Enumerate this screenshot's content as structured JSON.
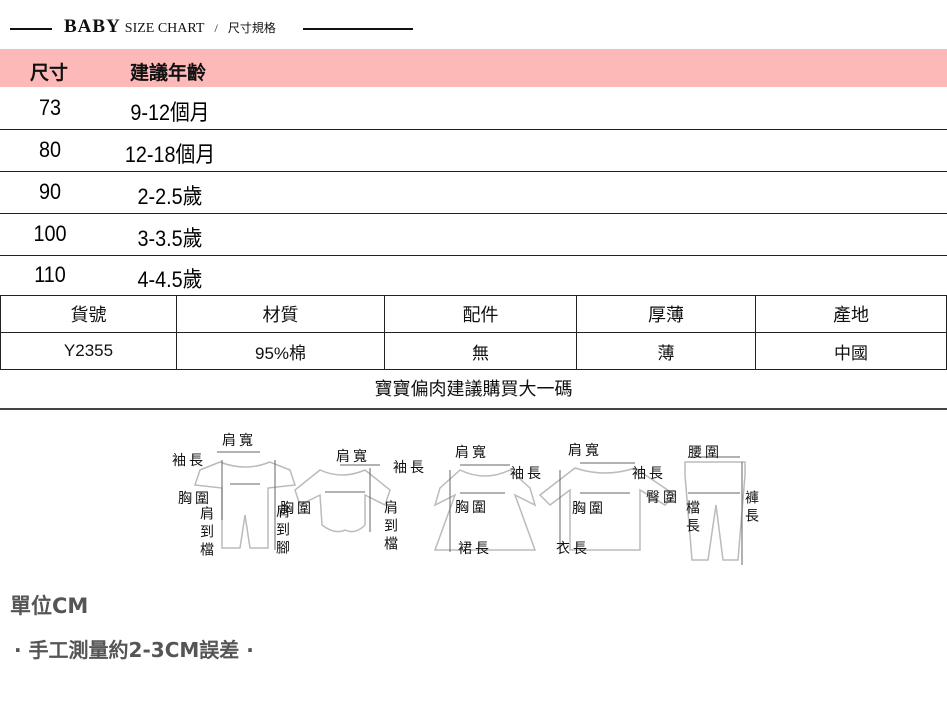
{
  "header": {
    "baby": "BABY",
    "size_chart": "SIZE CHART",
    "slash": "/",
    "zh_title": "尺寸規格"
  },
  "size_table": {
    "columns": [
      "尺寸",
      "建議年齡"
    ],
    "rows": [
      {
        "size": "73",
        "age": "9-12個月"
      },
      {
        "size": "80",
        "age": "12-18個月"
      },
      {
        "size": "90",
        "age": "2-2.5歲"
      },
      {
        "size": "100",
        "age": "3-3.5歲"
      },
      {
        "size": "110",
        "age": "4-4.5歲"
      }
    ],
    "header_color": "#fdb8b8"
  },
  "spec_table": {
    "headers": [
      "貨號",
      "材質",
      "配件",
      "厚薄",
      "產地"
    ],
    "values": [
      "Y2355",
      "95%棉",
      "無",
      "薄",
      "中國"
    ],
    "note": "寶寶偏肉建議購買大一碼"
  },
  "diagram": {
    "labels": {
      "romper_shoulder": "肩寬",
      "romper_sleeve": "袖長",
      "romper_chest": "胸圍",
      "romper_shoulder_crotch": "肩到檔",
      "romper_shoulder_foot": "肩到腳",
      "bodysuit_shoulder": "肩寬",
      "bodysuit_sleeve": "袖長",
      "bodysuit_chest": "胸圍",
      "bodysuit_shoulder_crotch": "肩到檔",
      "dress_shoulder": "肩寬",
      "dress_sleeve": "袖長",
      "dress_chest": "胸圍",
      "dress_length": "裙長",
      "top_shoulder": "肩寬",
      "top_sleeve": "袖長",
      "top_chest": "胸圍",
      "top_length": "衣長",
      "pants_waist": "腰圍",
      "pants_hip": "臀圍",
      "pants_crotch": "檔長",
      "pants_length": "褲長"
    }
  },
  "footer": {
    "unit": "單位CM",
    "error_note": "· 手工測量約2-3CM誤差 ·"
  }
}
